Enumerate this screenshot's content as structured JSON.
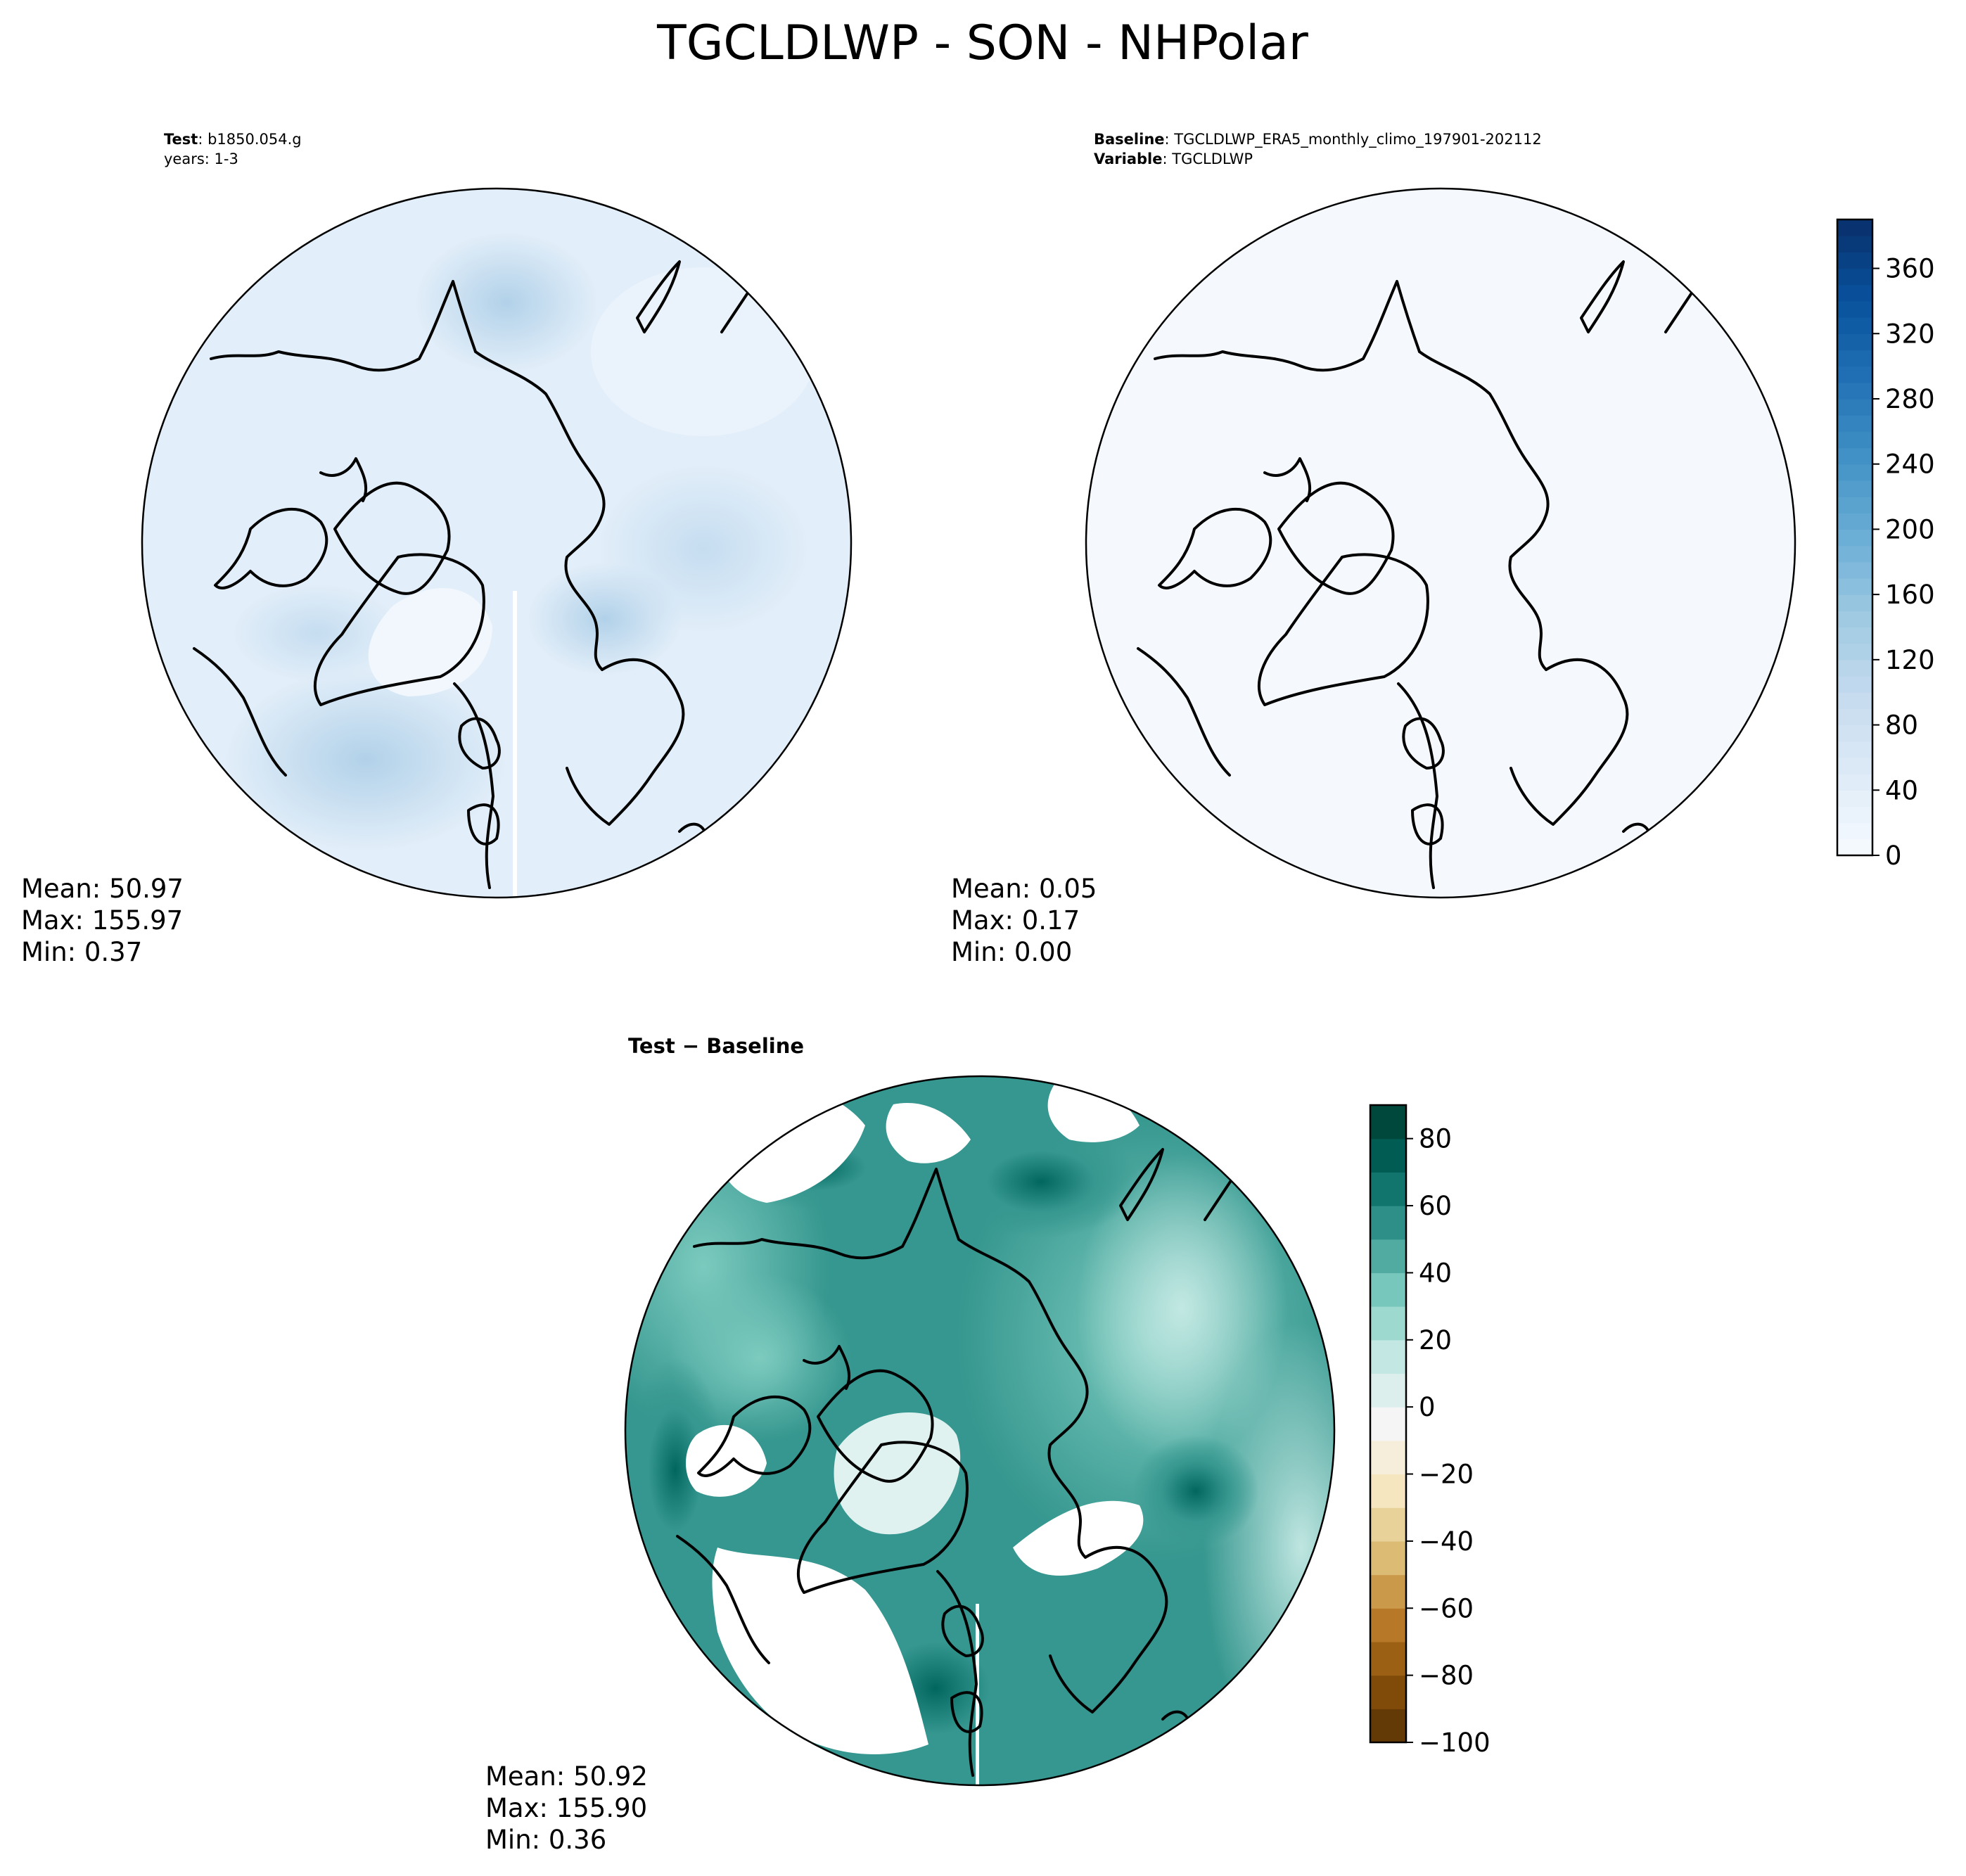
{
  "figure": {
    "title": "TGCLDLWP - SON - NHPolar"
  },
  "panels": {
    "test": {
      "label_bold": "Test",
      "label_text": ": b1850.054.g",
      "label_line2": "years: 1-3",
      "stats": {
        "mean": "Mean: 50.97",
        "max": "Max: 155.97",
        "min": "Min:  0.37"
      }
    },
    "baseline": {
      "label_bold": "Baseline",
      "label_text": ": TGCLDLWP_ERA5_monthly_climo_197901-202112",
      "label2_bold": "Variable",
      "label2_text": ": TGCLDLWP",
      "stats": {
        "mean": "Mean:  0.05",
        "max": "Max:  0.17",
        "min": "Min:  0.00"
      }
    },
    "diff": {
      "title": "Test − Baseline",
      "stats": {
        "mean": "Mean: 50.92",
        "max": "Max: 155.90",
        "min": "Min:  0.36"
      }
    }
  },
  "colors": {
    "blues_low": "#f7fbff",
    "blues_high": "#08306b",
    "brbg_low": "#543005",
    "brbg_mid": "#f5f5f5",
    "brbg_high": "#003c30",
    "coastline": "#000000"
  },
  "chart_data": [
    {
      "type": "heatmap",
      "name_ref": "test",
      "projection": "north-polar-stereographic",
      "colormap": "Blues",
      "clim": [
        0,
        390
      ],
      "colorbar_ticks": [
        "0",
        "40",
        "80",
        "120",
        "160",
        "200",
        "240",
        "280",
        "320",
        "360"
      ],
      "colorbar_tick_values": [
        0,
        40,
        80,
        120,
        160,
        200,
        240,
        280,
        320,
        360
      ],
      "colorbar_placement": "right of baseline panel (shared)"
    },
    {
      "type": "heatmap",
      "name_ref": "baseline",
      "projection": "north-polar-stereographic",
      "colormap": "Blues",
      "clim": [
        0,
        390
      ]
    },
    {
      "type": "heatmap",
      "name_ref": "diff",
      "projection": "north-polar-stereographic",
      "colormap": "BrBG",
      "clim": [
        -100,
        90
      ],
      "levels": [
        -100,
        -90,
        -80,
        -70,
        -60,
        -50,
        -40,
        -30,
        -20,
        -10,
        0,
        10,
        20,
        30,
        40,
        50,
        60,
        70,
        80,
        90
      ],
      "colorbar_ticks": [
        "−100",
        "−80",
        "−60",
        "−40",
        "−20",
        "0",
        "20",
        "40",
        "60",
        "80"
      ],
      "colorbar_tick_values": [
        -100,
        -80,
        -60,
        -40,
        -20,
        0,
        20,
        40,
        60,
        80
      ],
      "colorbar_placement": "right of diff panel"
    }
  ]
}
